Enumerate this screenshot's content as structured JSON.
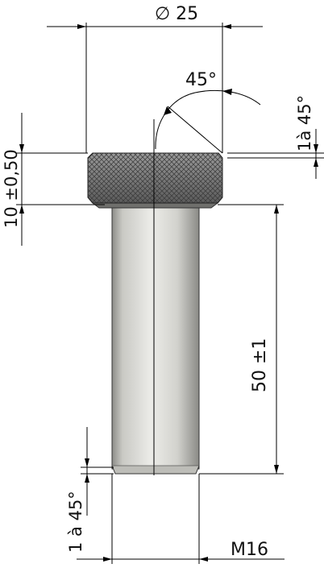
{
  "dimensions": {
    "diameter_head": "∅ 25",
    "chamfer_angle": "45°",
    "chamfer_top": "1à 45°",
    "head_height": "10 ±0,50",
    "shank_length": "50 ±1",
    "chamfer_bottom": "1 à 45°",
    "thread": "M16"
  },
  "colors": {
    "line": "#000000",
    "knurl_base": "#7d7d7d",
    "knurl_mesh": "#3a3a3a",
    "shank_light": "#e8e8e4",
    "shank_dark": "#8a8a86",
    "text": "#111111"
  }
}
